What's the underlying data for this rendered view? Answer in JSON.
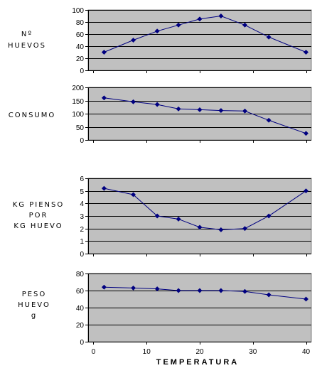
{
  "x_axis": {
    "ticks": [
      0,
      10,
      20,
      30,
      40
    ],
    "range": [
      -1,
      41
    ],
    "label": "TEMPERATURA"
  },
  "colors": {
    "plot_bg": "#c0c0c0",
    "line": "#000080",
    "grid": "#000000",
    "border": "#808080"
  },
  "chart_data": [
    {
      "type": "line",
      "ylabel": [
        "Nº",
        "HUEVOS"
      ],
      "ylim": [
        0,
        100
      ],
      "yticks": [
        0,
        20,
        40,
        60,
        80,
        100
      ],
      "grid": true,
      "x": [
        2,
        7.5,
        12,
        16,
        20,
        24,
        28.5,
        33,
        40
      ],
      "series": [
        {
          "values": [
            30,
            50,
            65,
            75,
            85,
            90,
            75,
            55,
            30
          ]
        }
      ]
    },
    {
      "type": "line",
      "ylabel": [
        "CONSUMO"
      ],
      "ylim": [
        0,
        200
      ],
      "yticks": [
        0,
        50,
        100,
        150,
        200
      ],
      "grid": true,
      "x": [
        2,
        7.5,
        12,
        16,
        20,
        24,
        28.5,
        33,
        40
      ],
      "series": [
        {
          "values": [
            160,
            145,
            135,
            118,
            115,
            112,
            110,
            75,
            25
          ]
        }
      ]
    },
    {
      "type": "line",
      "ylabel": [
        "KG PIENSO",
        "POR",
        "KG HUEVO"
      ],
      "ylim": [
        0,
        6
      ],
      "yticks": [
        0,
        1,
        2,
        3,
        4,
        5,
        6
      ],
      "grid": true,
      "x": [
        2,
        7.5,
        12,
        16,
        20,
        24,
        28.5,
        33,
        40
      ],
      "series": [
        {
          "values": [
            5.2,
            4.7,
            3.0,
            2.75,
            2.1,
            1.9,
            2.0,
            3.0,
            5.0
          ]
        }
      ]
    },
    {
      "type": "line",
      "ylabel": [
        "PESO",
        "HUEVO",
        "g"
      ],
      "ylim": [
        0,
        80
      ],
      "yticks": [
        0,
        20,
        40,
        60,
        80
      ],
      "grid": true,
      "x": [
        2,
        7.5,
        12,
        16,
        20,
        24,
        28.5,
        33,
        40
      ],
      "series": [
        {
          "values": [
            64,
            63,
            62,
            60,
            60,
            60,
            59,
            55,
            50
          ]
        }
      ]
    }
  ]
}
